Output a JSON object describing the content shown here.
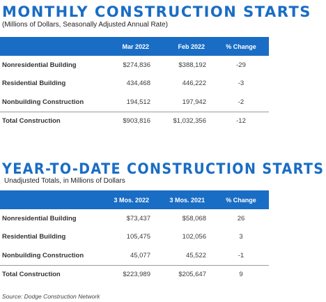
{
  "monthly": {
    "title": "MONTHLY CONSTRUCTION STARTS",
    "subtitle": "(Millions of Dollars, Seasonally Adjusted Annual Rate)",
    "headers": [
      "",
      "Mar 2022",
      "Feb 2022",
      "% Change"
    ],
    "rows": [
      [
        "Nonresidential Building",
        "$274,836",
        "$388,192",
        "-29"
      ],
      [
        "Residential Building",
        "434,468",
        "446,222",
        "-3"
      ],
      [
        "Nonbuilding Construction",
        "194,512",
        "197,942",
        "-2"
      ],
      [
        "Total Construction",
        "$903,816",
        "$1,032,356",
        "-12"
      ]
    ]
  },
  "ytd": {
    "title": "YEAR-TO-DATE CONSTRUCTION STARTS",
    "subtitle": "Unadjusted Totals, in Millions of Dollars",
    "headers": [
      "",
      "3 Mos. 2022",
      "3 Mos. 2021",
      "% Change"
    ],
    "rows": [
      [
        "Nonresidential Building",
        "$73,437",
        "$58,068",
        "26"
      ],
      [
        "Residential Building",
        "105,475",
        "102,056",
        "3"
      ],
      [
        "Nonbuilding Construction",
        "45,077",
        "45,522",
        "-1"
      ],
      [
        "Total Construction",
        "$223,989",
        "$205,647",
        "9"
      ]
    ]
  },
  "source": "Source: Dodge Construction Network",
  "colors": {
    "accent": "#1a6dc4",
    "text": "#3a3a3a"
  }
}
